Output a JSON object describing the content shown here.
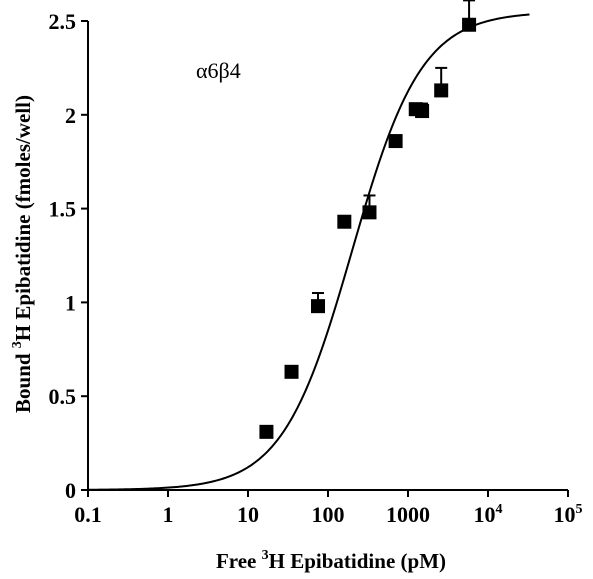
{
  "chart_data": {
    "type": "scatter",
    "title": "",
    "annotation": "α6β4",
    "xlabel": {
      "prefix": "Free ",
      "sup": "3",
      "suffix": "H Epibatidine (pM)"
    },
    "ylabel": {
      "prefix": "Bound ",
      "sup": "3",
      "suffix": "H Epibatidine  (fmoles/well)"
    },
    "x_scale": "log",
    "xlim": [
      0.1,
      100000
    ],
    "ylim": [
      0,
      2.5
    ],
    "x_ticks": [
      {
        "value": 0.1,
        "base": "0.1",
        "sup": ""
      },
      {
        "value": 1,
        "base": "1",
        "sup": ""
      },
      {
        "value": 10,
        "base": "10",
        "sup": ""
      },
      {
        "value": 100,
        "base": "100",
        "sup": ""
      },
      {
        "value": 1000,
        "base": "1000",
        "sup": ""
      },
      {
        "value": 10000,
        "base": "10",
        "sup": "4"
      },
      {
        "value": 100000,
        "base": "10",
        "sup": "5"
      }
    ],
    "y_ticks": [
      {
        "value": 0,
        "label": "0"
      },
      {
        "value": 0.5,
        "label": "0.5"
      },
      {
        "value": 1,
        "label": "1"
      },
      {
        "value": 1.5,
        "label": "1.5"
      },
      {
        "value": 2,
        "label": "2"
      },
      {
        "value": 2.5,
        "label": "2.5"
      }
    ],
    "points": [
      {
        "x": 17,
        "y": 0.31,
        "err": 0
      },
      {
        "x": 35,
        "y": 0.63,
        "err": 0
      },
      {
        "x": 75,
        "y": 0.98,
        "err": 0.07
      },
      {
        "x": 160,
        "y": 1.43,
        "err": 0.03
      },
      {
        "x": 330,
        "y": 1.48,
        "err": 0.09
      },
      {
        "x": 700,
        "y": 1.86,
        "err": 0
      },
      {
        "x": 1250,
        "y": 2.03,
        "err": 0.02
      },
      {
        "x": 1500,
        "y": 2.02,
        "err": 0.04
      },
      {
        "x": 2600,
        "y": 2.13,
        "err": 0.12
      },
      {
        "x": 5800,
        "y": 2.48,
        "err": 0.13
      }
    ],
    "fit_curve": {
      "bmax": 2.55,
      "kd": 200,
      "x_range": [
        0.1,
        33000
      ]
    },
    "grid": false,
    "legend": "none"
  }
}
